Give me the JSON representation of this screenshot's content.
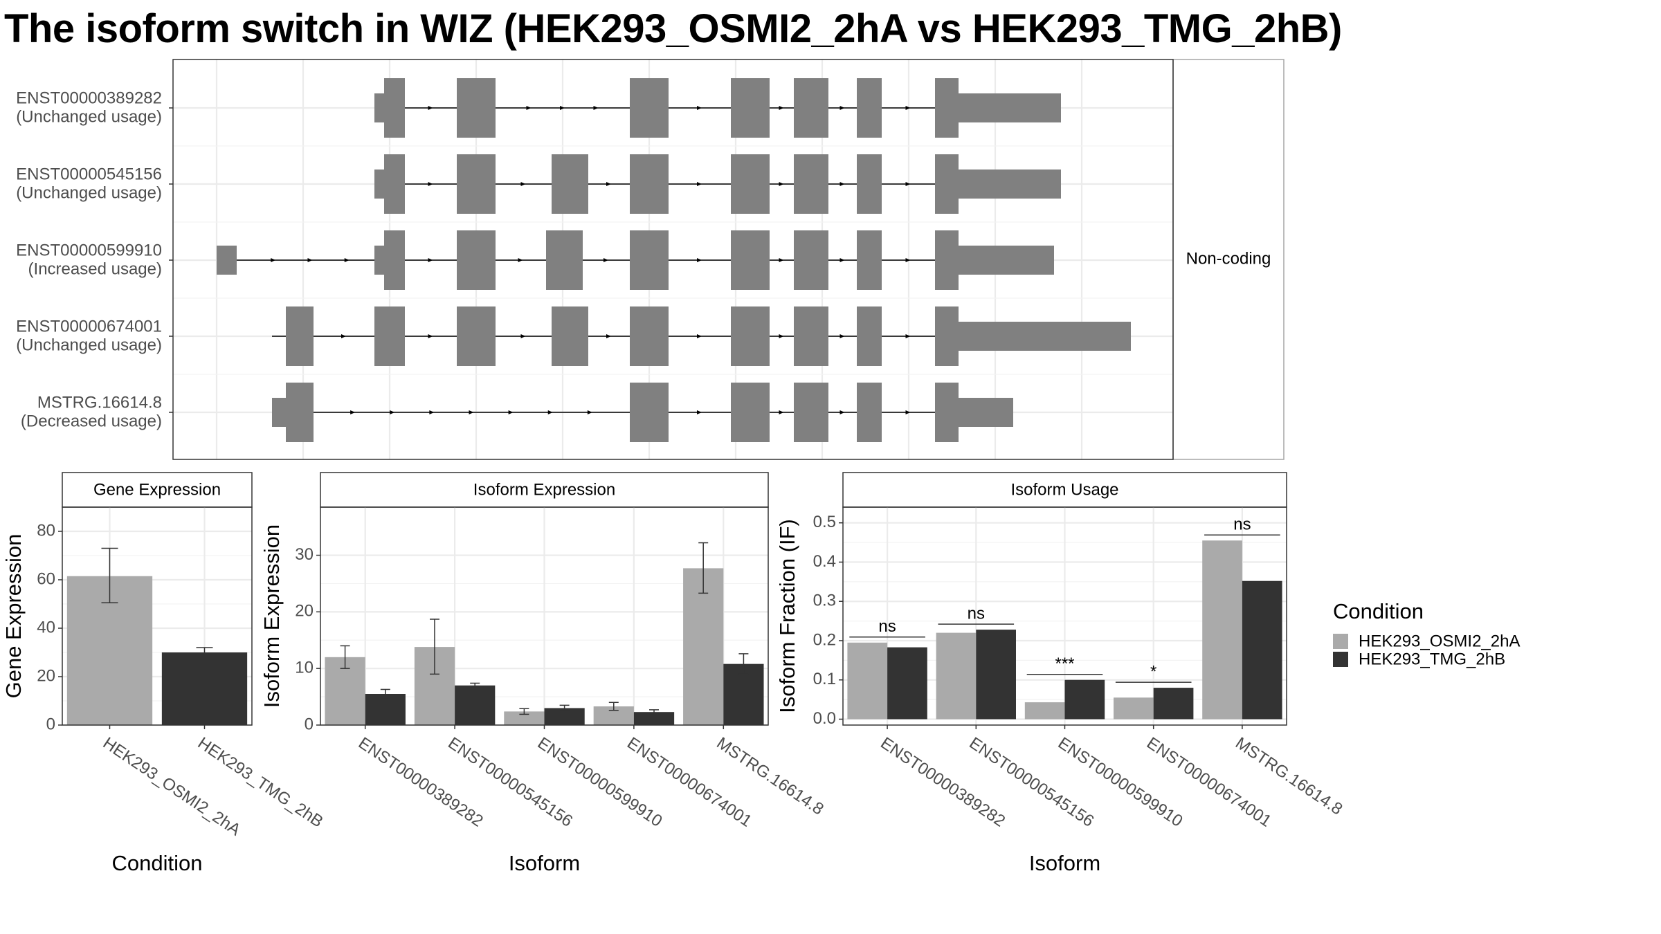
{
  "title": "The isoform switch in WIZ (HEK293_OSMI2_2hA vs HEK293_TMG_2hB)",
  "colors": {
    "condition_a": "#aaaaaa",
    "condition_b": "#333333",
    "exon": "#808080",
    "grid": "#ebebeb",
    "axis_text": "#4d4d4d"
  },
  "legend": {
    "title": "Condition",
    "entries": [
      "HEK293_OSMI2_2hA",
      "HEK293_TMG_2hB"
    ],
    "placement": "right"
  },
  "chart_data": [
    {
      "type": "gene-structure",
      "facet_label": "Non-coding",
      "transcripts": [
        {
          "id": "ENST00000389282",
          "label": "(Unchanged usage)"
        },
        {
          "id": "ENST00000545156",
          "label": "(Unchanged usage)"
        },
        {
          "id": "ENST00000599910",
          "label": "(Increased usage)"
        },
        {
          "id": "ENST00000674001",
          "label": "(Unchanged usage)"
        },
        {
          "id": "MSTRG.16614.8",
          "label": "(Decreased usage)"
        }
      ]
    },
    {
      "type": "bar",
      "panel": "Gene Expression",
      "xlabel": "Condition",
      "ylabel": "Gene Expression",
      "ylim": [
        0,
        90
      ],
      "yticks": [
        0,
        20,
        40,
        60,
        80
      ],
      "categories": [
        "HEK293_OSMI2_2hA",
        "HEK293_TMG_2hB"
      ],
      "values": [
        61.5,
        30
      ],
      "error_low": [
        50.5,
        28.8
      ],
      "error_high": [
        73,
        32
      ]
    },
    {
      "type": "bar",
      "panel": "Isoform Expression",
      "xlabel": "Isoform",
      "ylabel": "Isoform Expression",
      "ylim": [
        0,
        38.5
      ],
      "yticks": [
        0,
        10,
        20,
        30
      ],
      "categories": [
        "ENST00000389282",
        "ENST00000545156",
        "ENST00000599910",
        "ENST00000674001",
        "MSTRG.16614.8"
      ],
      "series": [
        {
          "name": "HEK293_OSMI2_2hA",
          "values": [
            12,
            13.8,
            2.4,
            3.3,
            27.7
          ],
          "error_low": [
            10,
            9,
            1.9,
            2.6,
            23.3
          ],
          "error_high": [
            14,
            18.7,
            2.9,
            4,
            32.2
          ]
        },
        {
          "name": "HEK293_TMG_2hB",
          "values": [
            5.5,
            7,
            3,
            2.3,
            10.8
          ],
          "error_low": [
            4.8,
            6.6,
            2.5,
            1.9,
            9
          ],
          "error_high": [
            6.3,
            7.4,
            3.5,
            2.7,
            12.6
          ]
        }
      ]
    },
    {
      "type": "bar",
      "panel": "Isoform Usage",
      "xlabel": "Isoform",
      "ylabel": "Isoform Fraction (IF)",
      "ylim": [
        -0.015,
        0.54
      ],
      "yticks": [
        0.0,
        0.1,
        0.2,
        0.3,
        0.4,
        0.5
      ],
      "ytick_labels": [
        "0.0",
        "0.1",
        "0.2",
        "0.3",
        "0.4",
        "0.5"
      ],
      "categories": [
        "ENST00000389282",
        "ENST00000545156",
        "ENST00000599910",
        "ENST00000674001",
        "MSTRG.16614.8"
      ],
      "series": [
        {
          "name": "HEK293_OSMI2_2hA",
          "values": [
            0.195,
            0.22,
            0.043,
            0.055,
            0.455
          ]
        },
        {
          "name": "HEK293_TMG_2hB",
          "values": [
            0.183,
            0.228,
            0.1,
            0.08,
            0.352
          ]
        }
      ],
      "significance": [
        "ns",
        "ns",
        "***",
        "*",
        "ns"
      ]
    }
  ]
}
